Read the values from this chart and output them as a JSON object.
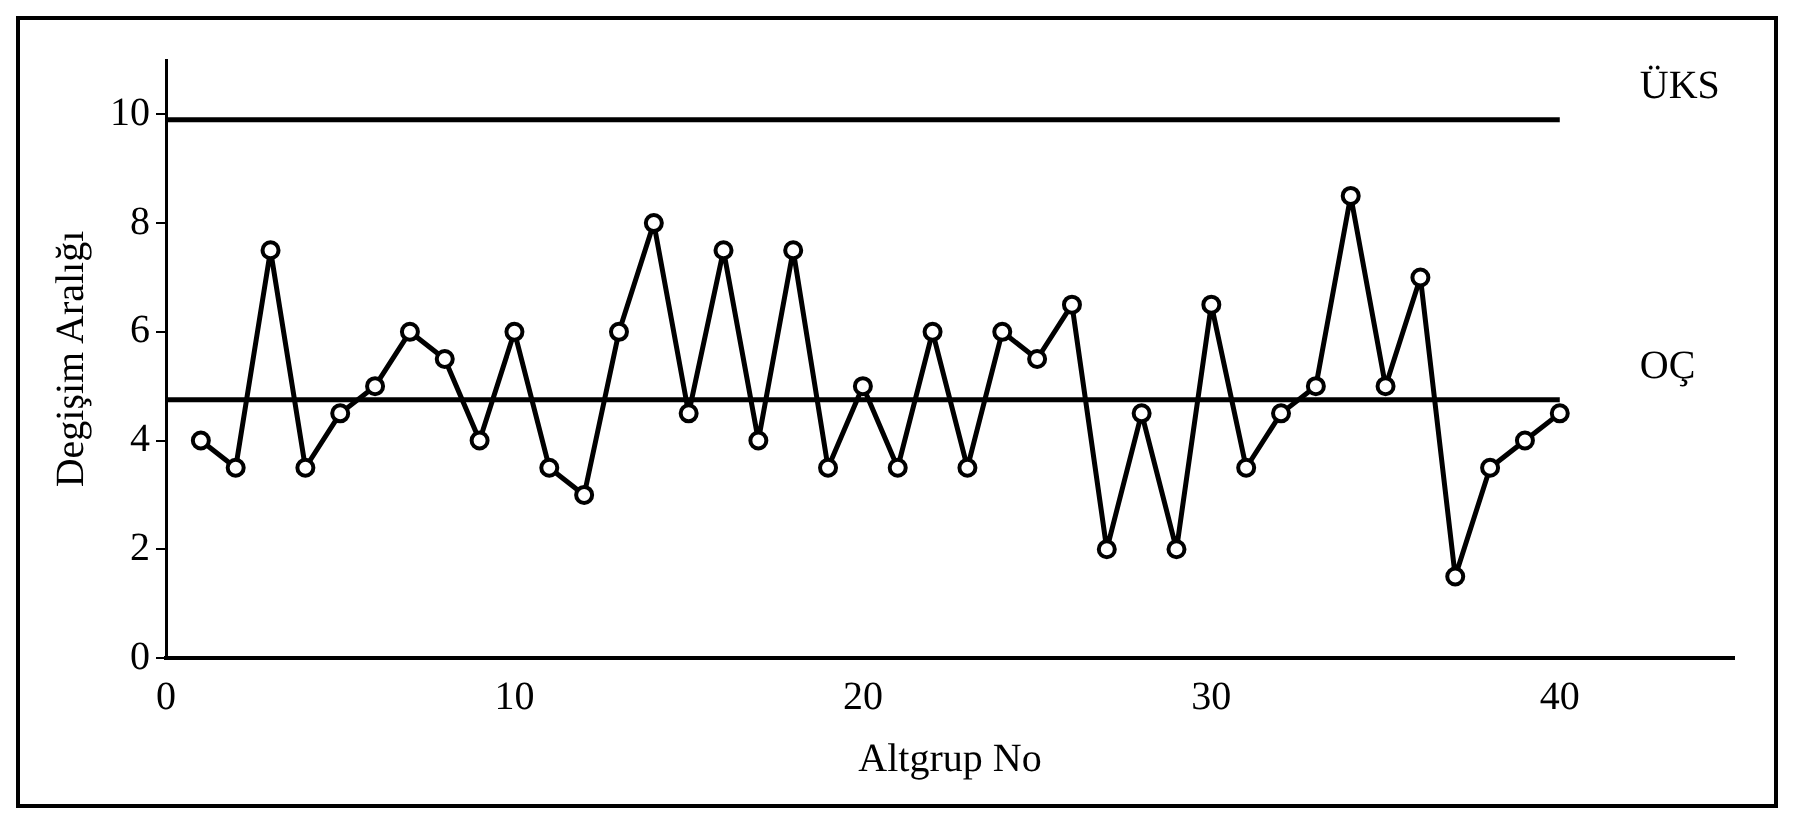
{
  "chart_data": {
    "type": "line",
    "xlabel": "Altgrup No",
    "ylabel": "Degişim Aralığı",
    "x": [
      1,
      2,
      3,
      4,
      5,
      6,
      7,
      8,
      9,
      10,
      11,
      12,
      13,
      14,
      15,
      16,
      17,
      18,
      19,
      20,
      21,
      22,
      23,
      24,
      25,
      26,
      27,
      28,
      29,
      30,
      31,
      32,
      33,
      34,
      35,
      36,
      37,
      38,
      39,
      40
    ],
    "values": [
      4,
      3.5,
      7.5,
      3.5,
      4.5,
      5,
      6,
      5.5,
      4,
      6,
      3.5,
      3,
      6,
      8,
      4.5,
      7.5,
      4,
      7.5,
      3.5,
      5,
      3.5,
      6,
      3.5,
      6,
      5.5,
      6.5,
      2,
      4.5,
      2,
      6.5,
      3.5,
      4.5,
      5,
      8.5,
      5,
      7,
      1.5,
      3.5,
      4,
      4.5
    ],
    "color": "#000000",
    "marker": "circle",
    "line_style": "solid",
    "xlim": [
      0,
      45
    ],
    "xticks": [
      0,
      10,
      20,
      30,
      40
    ],
    "ylim": [
      0,
      11
    ],
    "yticks": [
      0,
      2,
      4,
      6,
      8,
      10
    ],
    "ref_lines": [
      {
        "axis": "y",
        "value": 9.9,
        "label": "ÜKS",
        "color": "#000000"
      },
      {
        "axis": "y",
        "value": 4.75,
        "label": "OÇ",
        "color": "#000000"
      }
    ],
    "grid": false,
    "legend": false
  }
}
